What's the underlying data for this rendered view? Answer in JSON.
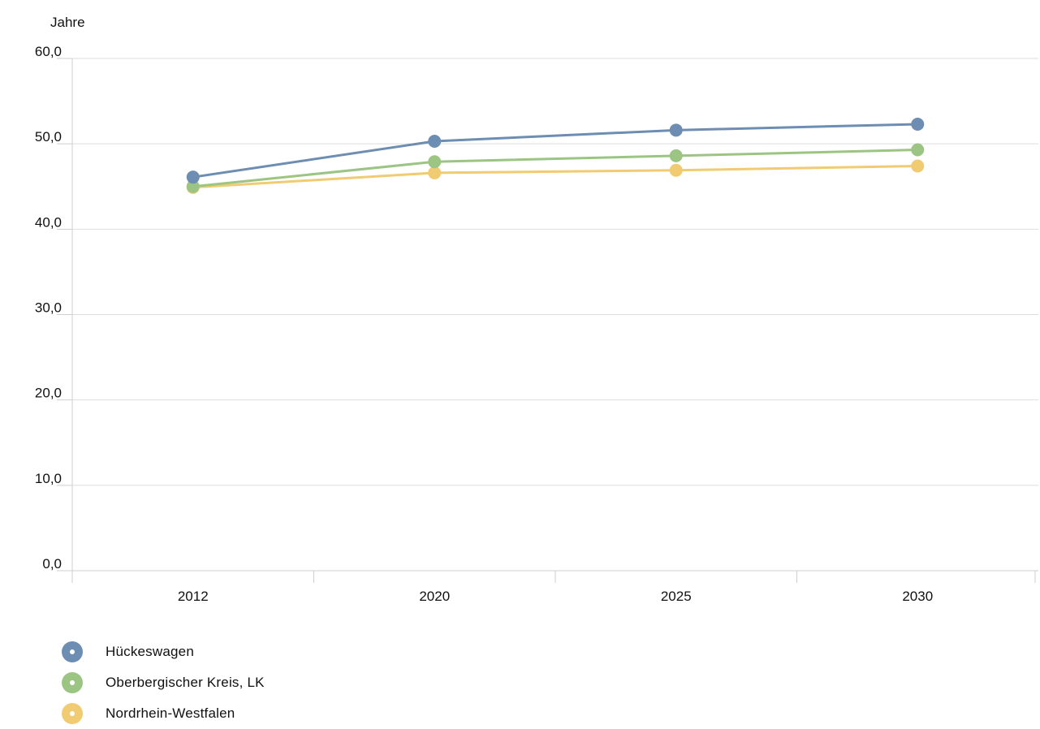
{
  "chart_data": {
    "type": "line",
    "ylabel": "Jahre",
    "categories": [
      "2012",
      "2020",
      "2025",
      "2030"
    ],
    "ylim": [
      0,
      60
    ],
    "yticks": [
      "0,0",
      "10,0",
      "20,0",
      "30,0",
      "40,0",
      "50,0",
      "60,0"
    ],
    "grid": true,
    "legend_position": "bottom-left",
    "series": [
      {
        "name": "Hückeswagen",
        "color": "#6d8db3",
        "values": [
          46.1,
          50.3,
          51.6,
          52.3
        ]
      },
      {
        "name": "Oberbergischer Kreis, LK",
        "color": "#9cc584",
        "values": [
          45.0,
          47.9,
          48.6,
          49.3
        ]
      },
      {
        "name": "Nordrhein-Westfalen",
        "color": "#f0cb72",
        "values": [
          44.9,
          46.6,
          46.9,
          47.4
        ]
      }
    ]
  }
}
